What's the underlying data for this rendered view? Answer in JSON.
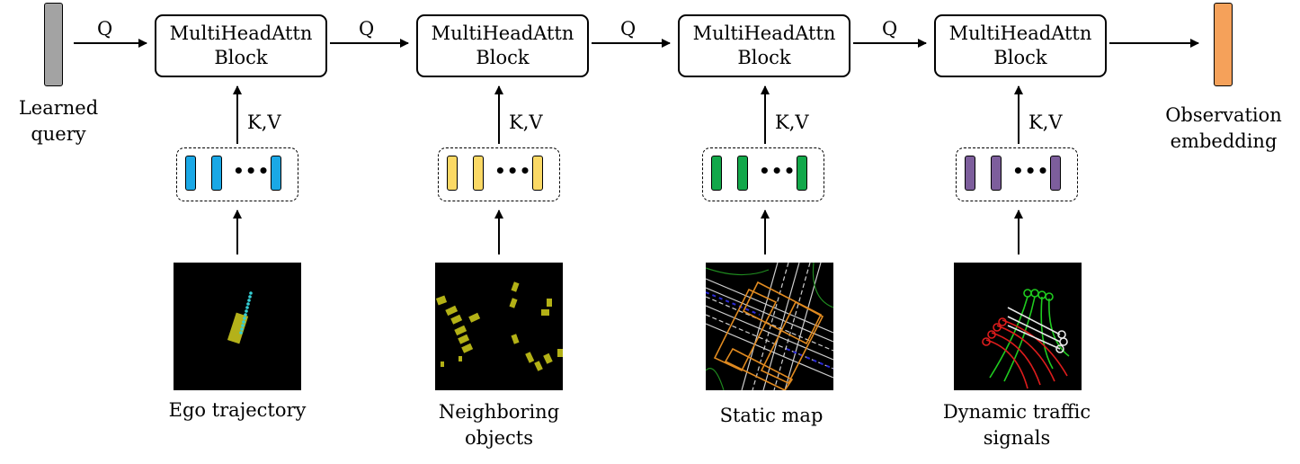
{
  "learned_query": {
    "line1": "Learned",
    "line2": "query",
    "color": "#a3a3a3"
  },
  "output": {
    "line1": "Observation",
    "line2": "embedding",
    "color": "#f5a15a"
  },
  "q_label": "Q",
  "kv_label": "K,V",
  "block_label": {
    "line1": "MultiHeadAttn",
    "line2": "Block"
  },
  "token_ellipsis": "•••",
  "stages": [
    {
      "caption_line1": "Ego trajectory",
      "caption_line2": "",
      "token_color": "#1aa8e6",
      "thumbnail": "ego-trajectory-bev"
    },
    {
      "caption_line1": "Neighboring",
      "caption_line2": "objects",
      "token_color": "#fbd965",
      "thumbnail": "neighboring-objects-bev"
    },
    {
      "caption_line1": "Static map",
      "caption_line2": "",
      "token_color": "#12a84a",
      "thumbnail": "static-map-bev"
    },
    {
      "caption_line1": "Dynamic traffic",
      "caption_line2": "signals",
      "token_color": "#7d5e9c",
      "thumbnail": "traffic-signals-bev"
    }
  ]
}
